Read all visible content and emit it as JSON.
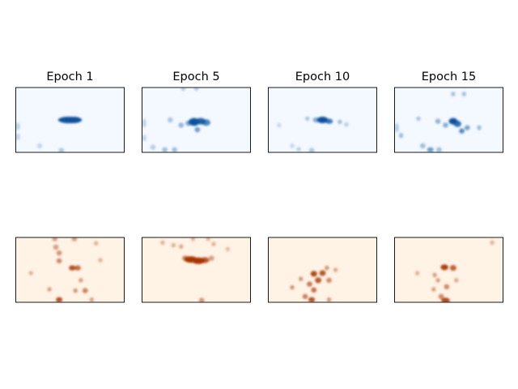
{
  "chart_data": [
    {
      "type": "heatmap",
      "title": "Epoch 1",
      "colormap": "Blues",
      "colors": {
        "background": "#f4f9ff",
        "peak": "#08519c"
      },
      "axes_ticks": false,
      "points": [
        {
          "x": 0.5,
          "y": 0.5,
          "v": 1.0,
          "sx": 0.11,
          "sy": 0.05
        },
        {
          "x": 0.46,
          "y": 0.5,
          "v": 0.5,
          "sx": 0.05,
          "sy": 0.05
        },
        {
          "x": 0.55,
          "y": 0.5,
          "v": 0.5,
          "sx": 0.05,
          "sy": 0.05
        },
        {
          "x": 0.02,
          "y": 0.6,
          "v": 0.22,
          "sx": 0.02,
          "sy": 0.06
        },
        {
          "x": 0.02,
          "y": 0.76,
          "v": 0.22,
          "sx": 0.02,
          "sy": 0.05
        },
        {
          "x": 0.22,
          "y": 0.9,
          "v": 0.2,
          "sx": 0.025,
          "sy": 0.04
        },
        {
          "x": 0.42,
          "y": 0.97,
          "v": 0.3,
          "sx": 0.025,
          "sy": 0.04
        }
      ]
    },
    {
      "type": "heatmap",
      "title": "Epoch 5",
      "colormap": "Blues",
      "colors": {
        "background": "#f4f9ff",
        "peak": "#08519c"
      },
      "axes_ticks": false,
      "points": [
        {
          "x": 0.48,
          "y": 0.53,
          "v": 1.0,
          "sx": 0.05,
          "sy": 0.06
        },
        {
          "x": 0.54,
          "y": 0.52,
          "v": 0.9,
          "sx": 0.045,
          "sy": 0.05
        },
        {
          "x": 0.59,
          "y": 0.54,
          "v": 0.7,
          "sx": 0.04,
          "sy": 0.05
        },
        {
          "x": 0.43,
          "y": 0.55,
          "v": 0.5,
          "sx": 0.03,
          "sy": 0.04
        },
        {
          "x": 0.36,
          "y": 0.58,
          "v": 0.4,
          "sx": 0.025,
          "sy": 0.04
        },
        {
          "x": 0.26,
          "y": 0.5,
          "v": 0.3,
          "sx": 0.025,
          "sy": 0.04
        },
        {
          "x": 0.51,
          "y": 0.65,
          "v": 0.55,
          "sx": 0.025,
          "sy": 0.04
        },
        {
          "x": 0.38,
          "y": 0.02,
          "v": 0.3,
          "sx": 0.02,
          "sy": 0.03
        },
        {
          "x": 0.5,
          "y": 0.02,
          "v": 0.3,
          "sx": 0.02,
          "sy": 0.03
        },
        {
          "x": 0.02,
          "y": 0.55,
          "v": 0.22,
          "sx": 0.02,
          "sy": 0.07
        },
        {
          "x": 0.02,
          "y": 0.78,
          "v": 0.22,
          "sx": 0.02,
          "sy": 0.05
        },
        {
          "x": 0.1,
          "y": 0.92,
          "v": 0.25,
          "sx": 0.025,
          "sy": 0.04
        },
        {
          "x": 0.21,
          "y": 0.96,
          "v": 0.35,
          "sx": 0.025,
          "sy": 0.04
        },
        {
          "x": 0.3,
          "y": 0.96,
          "v": 0.35,
          "sx": 0.025,
          "sy": 0.04
        }
      ]
    },
    {
      "type": "heatmap",
      "title": "Epoch 10",
      "colormap": "Blues",
      "colors": {
        "background": "#f4f9ff",
        "peak": "#08519c"
      },
      "axes_ticks": false,
      "points": [
        {
          "x": 0.5,
          "y": 0.5,
          "v": 1.0,
          "sx": 0.05,
          "sy": 0.05
        },
        {
          "x": 0.56,
          "y": 0.52,
          "v": 0.75,
          "sx": 0.035,
          "sy": 0.04
        },
        {
          "x": 0.44,
          "y": 0.5,
          "v": 0.45,
          "sx": 0.03,
          "sy": 0.04
        },
        {
          "x": 0.36,
          "y": 0.48,
          "v": 0.3,
          "sx": 0.02,
          "sy": 0.035
        },
        {
          "x": 0.66,
          "y": 0.53,
          "v": 0.35,
          "sx": 0.02,
          "sy": 0.035
        },
        {
          "x": 0.72,
          "y": 0.57,
          "v": 0.25,
          "sx": 0.02,
          "sy": 0.035
        },
        {
          "x": 0.1,
          "y": 0.58,
          "v": 0.2,
          "sx": 0.02,
          "sy": 0.035
        },
        {
          "x": 0.22,
          "y": 0.9,
          "v": 0.22,
          "sx": 0.02,
          "sy": 0.035
        },
        {
          "x": 0.28,
          "y": 0.95,
          "v": 0.25,
          "sx": 0.02,
          "sy": 0.035
        },
        {
          "x": 0.4,
          "y": 0.97,
          "v": 0.3,
          "sx": 0.025,
          "sy": 0.04
        }
      ]
    },
    {
      "type": "heatmap",
      "title": "Epoch 15",
      "colormap": "Blues",
      "colors": {
        "background": "#f4f9ff",
        "peak": "#08519c"
      },
      "axes_ticks": false,
      "points": [
        {
          "x": 0.54,
          "y": 0.52,
          "v": 1.0,
          "sx": 0.04,
          "sy": 0.05
        },
        {
          "x": 0.58,
          "y": 0.56,
          "v": 0.8,
          "sx": 0.035,
          "sy": 0.05
        },
        {
          "x": 0.62,
          "y": 0.67,
          "v": 0.65,
          "sx": 0.025,
          "sy": 0.04
        },
        {
          "x": 0.67,
          "y": 0.62,
          "v": 0.5,
          "sx": 0.025,
          "sy": 0.04
        },
        {
          "x": 0.47,
          "y": 0.58,
          "v": 0.45,
          "sx": 0.025,
          "sy": 0.04
        },
        {
          "x": 0.4,
          "y": 0.52,
          "v": 0.4,
          "sx": 0.025,
          "sy": 0.04
        },
        {
          "x": 0.78,
          "y": 0.62,
          "v": 0.35,
          "sx": 0.02,
          "sy": 0.04
        },
        {
          "x": 0.22,
          "y": 0.48,
          "v": 0.3,
          "sx": 0.02,
          "sy": 0.035
        },
        {
          "x": 0.54,
          "y": 0.1,
          "v": 0.35,
          "sx": 0.02,
          "sy": 0.035
        },
        {
          "x": 0.64,
          "y": 0.1,
          "v": 0.35,
          "sx": 0.02,
          "sy": 0.035
        },
        {
          "x": 0.02,
          "y": 0.62,
          "v": 0.25,
          "sx": 0.02,
          "sy": 0.07
        },
        {
          "x": 0.06,
          "y": 0.74,
          "v": 0.35,
          "sx": 0.02,
          "sy": 0.04
        },
        {
          "x": 0.26,
          "y": 0.9,
          "v": 0.35,
          "sx": 0.025,
          "sy": 0.04
        },
        {
          "x": 0.33,
          "y": 0.96,
          "v": 0.55,
          "sx": 0.03,
          "sy": 0.04
        },
        {
          "x": 0.41,
          "y": 0.96,
          "v": 0.35,
          "sx": 0.025,
          "sy": 0.04
        }
      ]
    },
    {
      "type": "heatmap",
      "title": "",
      "colormap": "Oranges",
      "colors": {
        "background": "#fff3e6",
        "peak": "#a63603"
      },
      "axes_ticks": false,
      "points": [
        {
          "x": 0.36,
          "y": 0.02,
          "v": 0.45,
          "sx": 0.025,
          "sy": 0.04
        },
        {
          "x": 0.54,
          "y": 0.02,
          "v": 0.45,
          "sx": 0.025,
          "sy": 0.04
        },
        {
          "x": 0.37,
          "y": 0.15,
          "v": 0.45,
          "sx": 0.025,
          "sy": 0.04
        },
        {
          "x": 0.4,
          "y": 0.24,
          "v": 0.5,
          "sx": 0.025,
          "sy": 0.04
        },
        {
          "x": 0.4,
          "y": 0.36,
          "v": 0.55,
          "sx": 0.025,
          "sy": 0.04
        },
        {
          "x": 0.74,
          "y": 0.09,
          "v": 0.35,
          "sx": 0.02,
          "sy": 0.035
        },
        {
          "x": 0.52,
          "y": 0.47,
          "v": 0.85,
          "sx": 0.03,
          "sy": 0.04
        },
        {
          "x": 0.57,
          "y": 0.47,
          "v": 0.7,
          "sx": 0.03,
          "sy": 0.04
        },
        {
          "x": 0.78,
          "y": 0.35,
          "v": 0.35,
          "sx": 0.02,
          "sy": 0.035
        },
        {
          "x": 0.14,
          "y": 0.55,
          "v": 0.35,
          "sx": 0.02,
          "sy": 0.035
        },
        {
          "x": 0.6,
          "y": 0.66,
          "v": 0.45,
          "sx": 0.02,
          "sy": 0.035
        },
        {
          "x": 0.31,
          "y": 0.8,
          "v": 0.45,
          "sx": 0.02,
          "sy": 0.035
        },
        {
          "x": 0.55,
          "y": 0.82,
          "v": 0.5,
          "sx": 0.02,
          "sy": 0.035
        },
        {
          "x": 0.64,
          "y": 0.82,
          "v": 0.6,
          "sx": 0.025,
          "sy": 0.04
        },
        {
          "x": 0.4,
          "y": 0.96,
          "v": 0.85,
          "sx": 0.03,
          "sy": 0.04
        },
        {
          "x": 0.7,
          "y": 0.96,
          "v": 0.45,
          "sx": 0.02,
          "sy": 0.035
        }
      ]
    },
    {
      "type": "heatmap",
      "title": "",
      "colormap": "Oranges",
      "colors": {
        "background": "#fff3e6",
        "peak": "#a63603"
      },
      "axes_ticks": false,
      "points": [
        {
          "x": 0.45,
          "y": 0.34,
          "v": 1.0,
          "sx": 0.06,
          "sy": 0.05
        },
        {
          "x": 0.52,
          "y": 0.36,
          "v": 1.0,
          "sx": 0.06,
          "sy": 0.05
        },
        {
          "x": 0.58,
          "y": 0.35,
          "v": 0.8,
          "sx": 0.04,
          "sy": 0.045
        },
        {
          "x": 0.4,
          "y": 0.32,
          "v": 0.6,
          "sx": 0.03,
          "sy": 0.04
        },
        {
          "x": 0.64,
          "y": 0.32,
          "v": 0.45,
          "sx": 0.025,
          "sy": 0.04
        },
        {
          "x": 0.19,
          "y": 0.08,
          "v": 0.35,
          "sx": 0.02,
          "sy": 0.035
        },
        {
          "x": 0.29,
          "y": 0.12,
          "v": 0.35,
          "sx": 0.02,
          "sy": 0.035
        },
        {
          "x": 0.36,
          "y": 0.14,
          "v": 0.4,
          "sx": 0.02,
          "sy": 0.035
        },
        {
          "x": 0.47,
          "y": 0.02,
          "v": 0.35,
          "sx": 0.02,
          "sy": 0.035
        },
        {
          "x": 0.61,
          "y": 0.02,
          "v": 0.35,
          "sx": 0.02,
          "sy": 0.035
        },
        {
          "x": 0.66,
          "y": 0.1,
          "v": 0.35,
          "sx": 0.02,
          "sy": 0.035
        },
        {
          "x": 0.79,
          "y": 0.18,
          "v": 0.3,
          "sx": 0.02,
          "sy": 0.035
        },
        {
          "x": 0.55,
          "y": 0.97,
          "v": 0.5,
          "sx": 0.025,
          "sy": 0.04
        }
      ]
    },
    {
      "type": "heatmap",
      "title": "",
      "colormap": "Oranges",
      "colors": {
        "background": "#fff3e6",
        "peak": "#a63603"
      },
      "axes_ticks": false,
      "points": [
        {
          "x": 0.42,
          "y": 0.56,
          "v": 0.9,
          "sx": 0.03,
          "sy": 0.045
        },
        {
          "x": 0.5,
          "y": 0.55,
          "v": 0.8,
          "sx": 0.03,
          "sy": 0.045
        },
        {
          "x": 0.46,
          "y": 0.66,
          "v": 0.8,
          "sx": 0.03,
          "sy": 0.045
        },
        {
          "x": 0.56,
          "y": 0.66,
          "v": 0.55,
          "sx": 0.025,
          "sy": 0.04
        },
        {
          "x": 0.38,
          "y": 0.72,
          "v": 0.65,
          "sx": 0.025,
          "sy": 0.04
        },
        {
          "x": 0.42,
          "y": 0.81,
          "v": 0.7,
          "sx": 0.025,
          "sy": 0.04
        },
        {
          "x": 0.3,
          "y": 0.64,
          "v": 0.5,
          "sx": 0.02,
          "sy": 0.035
        },
        {
          "x": 0.54,
          "y": 0.47,
          "v": 0.5,
          "sx": 0.02,
          "sy": 0.035
        },
        {
          "x": 0.62,
          "y": 0.5,
          "v": 0.4,
          "sx": 0.02,
          "sy": 0.035
        },
        {
          "x": 0.22,
          "y": 0.77,
          "v": 0.5,
          "sx": 0.02,
          "sy": 0.035
        },
        {
          "x": 0.34,
          "y": 0.91,
          "v": 0.6,
          "sx": 0.025,
          "sy": 0.04
        },
        {
          "x": 0.4,
          "y": 0.96,
          "v": 0.85,
          "sx": 0.03,
          "sy": 0.04
        },
        {
          "x": 0.56,
          "y": 0.96,
          "v": 0.5,
          "sx": 0.02,
          "sy": 0.035
        }
      ]
    },
    {
      "type": "heatmap",
      "title": "",
      "colormap": "Oranges",
      "colors": {
        "background": "#fff3e6",
        "peak": "#a63603"
      },
      "axes_ticks": false,
      "points": [
        {
          "x": 0.46,
          "y": 0.46,
          "v": 0.95,
          "sx": 0.035,
          "sy": 0.045
        },
        {
          "x": 0.54,
          "y": 0.47,
          "v": 0.75,
          "sx": 0.03,
          "sy": 0.045
        },
        {
          "x": 0.37,
          "y": 0.58,
          "v": 0.45,
          "sx": 0.02,
          "sy": 0.035
        },
        {
          "x": 0.4,
          "y": 0.66,
          "v": 0.45,
          "sx": 0.02,
          "sy": 0.035
        },
        {
          "x": 0.48,
          "y": 0.76,
          "v": 0.55,
          "sx": 0.025,
          "sy": 0.04
        },
        {
          "x": 0.36,
          "y": 0.8,
          "v": 0.45,
          "sx": 0.02,
          "sy": 0.035
        },
        {
          "x": 0.57,
          "y": 0.66,
          "v": 0.4,
          "sx": 0.02,
          "sy": 0.035
        },
        {
          "x": 0.21,
          "y": 0.55,
          "v": 0.35,
          "sx": 0.02,
          "sy": 0.035
        },
        {
          "x": 0.43,
          "y": 0.91,
          "v": 0.55,
          "sx": 0.025,
          "sy": 0.04
        },
        {
          "x": 0.47,
          "y": 0.97,
          "v": 0.9,
          "sx": 0.04,
          "sy": 0.04
        },
        {
          "x": 0.9,
          "y": 0.08,
          "v": 0.35,
          "sx": 0.02,
          "sy": 0.035
        }
      ]
    }
  ]
}
